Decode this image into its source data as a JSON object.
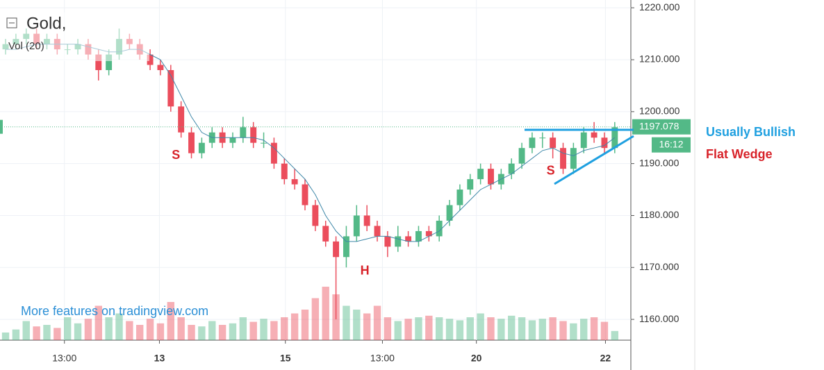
{
  "chart_data": {
    "type": "candlestick",
    "title": "Gold,",
    "volume_label": "Vol (20)",
    "watermark": "More features on tradingview.com",
    "annotations": [
      {
        "text": "S",
        "x": 16.5,
        "y": 1191.5
      },
      {
        "text": "H",
        "x": 34.8,
        "y": 1169.3
      },
      {
        "text": "S",
        "x": 52.8,
        "y": 1188.5
      }
    ],
    "side_notes": [
      "Usually Bullish",
      "Flat Wedge"
    ],
    "last_price": 1197.078,
    "countdown": "16:12",
    "up_color": "#53b987",
    "down_color": "#eb4d5c",
    "ma_color": "#3e87a8",
    "grid": true,
    "xlim": [
      -0.54,
      60.56
    ],
    "ylim": [
      1156,
      1221.5
    ],
    "yticks": [
      {
        "value": 1160,
        "label": "1160.000"
      },
      {
        "value": 1170,
        "label": "1170.000"
      },
      {
        "value": 1180,
        "label": "1180.000"
      },
      {
        "value": 1190,
        "label": "1190.000"
      },
      {
        "value": 1200,
        "label": "1200.000"
      },
      {
        "value": 1210,
        "label": "1210.000"
      },
      {
        "value": 1220,
        "label": "1220.000"
      }
    ],
    "xticks": [
      {
        "value": 5.7,
        "label": "13:00"
      },
      {
        "value": 14.9,
        "label": "13"
      },
      {
        "value": 27.1,
        "label": "15"
      },
      {
        "value": 36.5,
        "label": "13:00"
      },
      {
        "value": 45.6,
        "label": "20"
      },
      {
        "value": 58.1,
        "label": "22"
      }
    ],
    "ohlc": [
      [
        1212,
        1214,
        1211,
        1213
      ],
      [
        1213,
        1215,
        1212,
        1214
      ],
      [
        1214,
        1216,
        1213,
        1215
      ],
      [
        1215,
        1216,
        1212,
        1213
      ],
      [
        1213,
        1215,
        1212,
        1214
      ],
      [
        1214,
        1215,
        1211,
        1212
      ],
      [
        1212,
        1213,
        1211,
        1212
      ],
      [
        1212,
        1214,
        1211,
        1213
      ],
      [
        1213,
        1214,
        1210,
        1211
      ],
      [
        1211,
        1212,
        1206,
        1208
      ],
      [
        1208,
        1212,
        1207,
        1211
      ],
      [
        1211,
        1216,
        1210,
        1214
      ],
      [
        1214,
        1215,
        1212,
        1213
      ],
      [
        1213,
        1214,
        1210,
        1211
      ],
      [
        1211,
        1212,
        1208,
        1209
      ],
      [
        1209,
        1210,
        1207,
        1208
      ],
      [
        1208,
        1209,
        1200,
        1201
      ],
      [
        1201,
        1202,
        1195,
        1196
      ],
      [
        1196,
        1197,
        1191,
        1192
      ],
      [
        1192,
        1195,
        1191,
        1194
      ],
      [
        1194,
        1197,
        1193,
        1196
      ],
      [
        1196,
        1197,
        1193,
        1194
      ],
      [
        1194,
        1196,
        1193,
        1195
      ],
      [
        1195,
        1199,
        1194,
        1197
      ],
      [
        1197,
        1198,
        1193,
        1194
      ],
      [
        1194,
        1196,
        1193,
        1194
      ],
      [
        1194,
        1195,
        1189,
        1190
      ],
      [
        1190,
        1191,
        1186,
        1187
      ],
      [
        1187,
        1189,
        1185,
        1186
      ],
      [
        1186,
        1187,
        1181,
        1182
      ],
      [
        1182,
        1183,
        1177,
        1178
      ],
      [
        1178,
        1179,
        1174,
        1175
      ],
      [
        1175,
        1176,
        1160,
        1172
      ],
      [
        1172,
        1178,
        1170,
        1176
      ],
      [
        1176,
        1182,
        1175,
        1180
      ],
      [
        1180,
        1182,
        1177,
        1178
      ],
      [
        1178,
        1179,
        1175,
        1176
      ],
      [
        1176,
        1177,
        1172,
        1174
      ],
      [
        1174,
        1178,
        1173,
        1176
      ],
      [
        1176,
        1177,
        1174,
        1175
      ],
      [
        1175,
        1178,
        1174,
        1177
      ],
      [
        1177,
        1178,
        1175,
        1176
      ],
      [
        1176,
        1180,
        1175,
        1179
      ],
      [
        1179,
        1183,
        1178,
        1182
      ],
      [
        1182,
        1186,
        1181,
        1185
      ],
      [
        1185,
        1188,
        1184,
        1187
      ],
      [
        1187,
        1190,
        1186,
        1189
      ],
      [
        1189,
        1190,
        1185,
        1186
      ],
      [
        1186,
        1189,
        1185,
        1188
      ],
      [
        1188,
        1191,
        1187,
        1190
      ],
      [
        1190,
        1194,
        1189,
        1193
      ],
      [
        1193,
        1196,
        1192,
        1195
      ],
      [
        1195,
        1196,
        1193,
        1195
      ],
      [
        1195,
        1196,
        1191,
        1193
      ],
      [
        1193,
        1194,
        1188,
        1189
      ],
      [
        1189,
        1194,
        1188,
        1193
      ],
      [
        1193,
        1197,
        1192,
        1196
      ],
      [
        1196,
        1198,
        1194,
        1195
      ],
      [
        1195,
        1196,
        1192,
        1193
      ],
      [
        1193,
        1198,
        1192,
        1197
      ]
    ],
    "ma": [
      1212,
      1212,
      1212.5,
      1213,
      1213,
      1213,
      1213,
      1213,
      1212.5,
      1212,
      1211.5,
      1211.5,
      1212,
      1212,
      1211,
      1210,
      1207,
      1203,
      1199,
      1196,
      1195,
      1195,
      1195,
      1195,
      1195,
      1194.5,
      1193,
      1191,
      1189,
      1187,
      1184,
      1180,
      1177,
      1175,
      1175,
      1175.5,
      1176,
      1176,
      1175.5,
      1175,
      1175,
      1176,
      1177,
      1179,
      1181,
      1183,
      1185,
      1186,
      1187,
      1188,
      1189.5,
      1191,
      1192.5,
      1193,
      1192,
      1191.5,
      1192.5,
      1193,
      1193.5,
      1195
    ],
    "volume": [
      10,
      14,
      25,
      18,
      20,
      16,
      30,
      22,
      28,
      45,
      30,
      35,
      25,
      20,
      28,
      22,
      50,
      30,
      20,
      18,
      25,
      20,
      22,
      30,
      24,
      28,
      25,
      30,
      35,
      40,
      55,
      70,
      60,
      45,
      40,
      35,
      45,
      30,
      25,
      28,
      30,
      32,
      30,
      28,
      26,
      30,
      35,
      30,
      28,
      32,
      30,
      26,
      28,
      30,
      25,
      22,
      28,
      30,
      24,
      12
    ],
    "volume_ylim": [
      0,
      100
    ]
  }
}
